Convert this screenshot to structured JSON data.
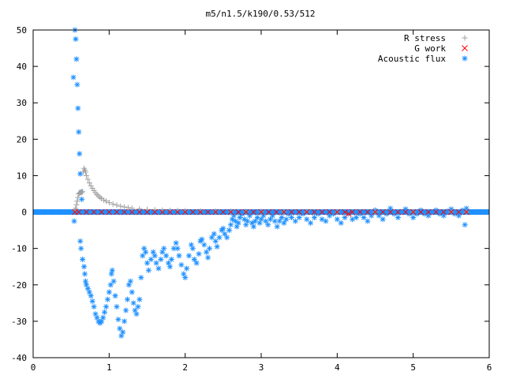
{
  "chart_data": {
    "type": "scatter",
    "title": "m5/n1.5/k190/0.53/512",
    "xlabel": "",
    "ylabel": "",
    "xlim": [
      0,
      6
    ],
    "ylim": [
      -40,
      50
    ],
    "xticks": [
      0,
      1,
      2,
      3,
      4,
      5,
      6
    ],
    "yticks": [
      -40,
      -30,
      -20,
      -10,
      0,
      10,
      20,
      30,
      40,
      50
    ],
    "grid": false,
    "legend_position": "top-right",
    "series": [
      {
        "name": "R stress",
        "marker": "plus",
        "color": "#a0a0a0",
        "points": [
          [
            0.55,
            0.5
          ],
          [
            0.56,
            1.0
          ],
          [
            0.57,
            2.0
          ],
          [
            0.58,
            3.0
          ],
          [
            0.59,
            4.0
          ],
          [
            0.6,
            5.0
          ],
          [
            0.61,
            5.2
          ],
          [
            0.62,
            5.3
          ],
          [
            0.63,
            5.4
          ],
          [
            0.64,
            5.5
          ],
          [
            0.65,
            5.6
          ],
          [
            0.66,
            11.0
          ],
          [
            0.67,
            12.0
          ],
          [
            0.68,
            11.5
          ],
          [
            0.69,
            11.0
          ],
          [
            0.7,
            10.0
          ],
          [
            0.72,
            9.0
          ],
          [
            0.74,
            8.0
          ],
          [
            0.76,
            7.2
          ],
          [
            0.78,
            6.5
          ],
          [
            0.8,
            5.9
          ],
          [
            0.82,
            5.3
          ],
          [
            0.84,
            4.8
          ],
          [
            0.86,
            4.4
          ],
          [
            0.88,
            4.0
          ],
          [
            0.9,
            3.7
          ],
          [
            0.93,
            3.3
          ],
          [
            0.96,
            3.0
          ],
          [
            1.0,
            2.6
          ],
          [
            1.05,
            2.2
          ],
          [
            1.1,
            1.9
          ],
          [
            1.15,
            1.6
          ],
          [
            1.2,
            1.4
          ],
          [
            1.25,
            1.2
          ],
          [
            1.3,
            1.05
          ],
          [
            1.4,
            0.85
          ],
          [
            1.5,
            0.7
          ],
          [
            1.6,
            0.6
          ],
          [
            1.7,
            0.5
          ],
          [
            1.8,
            0.45
          ],
          [
            1.9,
            0.4
          ],
          [
            2.0,
            0.35
          ],
          [
            2.2,
            0.3
          ],
          [
            2.4,
            0.25
          ],
          [
            2.6,
            0.2
          ],
          [
            2.8,
            0.18
          ],
          [
            3.0,
            0.15
          ],
          [
            3.3,
            0.12
          ],
          [
            3.6,
            0.1
          ],
          [
            4.0,
            0.08
          ],
          [
            4.5,
            0.06
          ],
          [
            5.0,
            0.05
          ],
          [
            5.5,
            0.04
          ],
          [
            5.7,
            0.03
          ]
        ]
      },
      {
        "name": "G work",
        "marker": "cross",
        "color": "#ff0000",
        "points": [
          [
            0.55,
            0.0
          ],
          [
            0.6,
            0.0
          ],
          [
            0.7,
            0.0
          ],
          [
            0.8,
            0.0
          ],
          [
            0.9,
            0.0
          ],
          [
            1.0,
            0.0
          ],
          [
            1.1,
            0.0
          ],
          [
            1.2,
            0.0
          ],
          [
            1.3,
            0.0
          ],
          [
            1.4,
            0.0
          ],
          [
            1.5,
            0.0
          ],
          [
            1.6,
            0.0
          ],
          [
            1.7,
            0.0
          ],
          [
            1.8,
            0.0
          ],
          [
            1.9,
            0.0
          ],
          [
            2.0,
            0.0
          ],
          [
            2.1,
            0.0
          ],
          [
            2.2,
            0.0
          ],
          [
            2.3,
            0.0
          ],
          [
            2.4,
            0.0
          ],
          [
            2.5,
            0.0
          ],
          [
            2.6,
            0.0
          ],
          [
            2.7,
            0.0
          ],
          [
            2.8,
            0.0
          ],
          [
            2.9,
            0.0
          ],
          [
            3.0,
            0.0
          ],
          [
            3.1,
            0.0
          ],
          [
            3.2,
            0.0
          ],
          [
            3.3,
            0.0
          ],
          [
            3.4,
            0.0
          ],
          [
            3.5,
            0.0
          ],
          [
            3.6,
            0.0
          ],
          [
            3.7,
            0.0
          ],
          [
            3.8,
            0.0
          ],
          [
            3.9,
            0.0
          ],
          [
            4.0,
            0.0
          ],
          [
            4.1,
            0.0
          ],
          [
            4.15,
            -0.5
          ],
          [
            4.2,
            0.0
          ],
          [
            4.3,
            0.0
          ],
          [
            4.4,
            0.0
          ],
          [
            4.5,
            0.0
          ],
          [
            4.6,
            0.0
          ],
          [
            4.7,
            0.0
          ],
          [
            4.8,
            0.0
          ],
          [
            4.9,
            0.0
          ],
          [
            5.0,
            0.0
          ],
          [
            5.1,
            0.0
          ],
          [
            5.2,
            0.0
          ],
          [
            5.3,
            0.0
          ],
          [
            5.4,
            0.0
          ],
          [
            5.5,
            0.0
          ],
          [
            5.6,
            0.0
          ],
          [
            5.7,
            0.0
          ]
        ]
      },
      {
        "name": "Acoustic flux",
        "marker": "star",
        "color": "#1e90ff",
        "points": [
          [
            0.53,
            37.0
          ],
          [
            0.55,
            50.0
          ],
          [
            0.56,
            47.5
          ],
          [
            0.57,
            42.0
          ],
          [
            0.58,
            35.0
          ],
          [
            0.59,
            28.5
          ],
          [
            0.6,
            22.0
          ],
          [
            0.61,
            16.0
          ],
          [
            0.62,
            10.5
          ],
          [
            0.63,
            5.5
          ],
          [
            0.64,
            3.5
          ],
          [
            0.54,
            -2.5
          ],
          [
            0.62,
            -8.0
          ],
          [
            0.63,
            -10.0
          ],
          [
            0.65,
            -13.0
          ],
          [
            0.67,
            -15.0
          ],
          [
            0.68,
            -17.0
          ],
          [
            0.69,
            -19.0
          ],
          [
            0.7,
            -20.0
          ],
          [
            0.72,
            -21.0
          ],
          [
            0.74,
            -22.0
          ],
          [
            0.76,
            -23.0
          ],
          [
            0.78,
            -24.5
          ],
          [
            0.8,
            -26.0
          ],
          [
            0.82,
            -28.0
          ],
          [
            0.84,
            -29.0
          ],
          [
            0.86,
            -30.0
          ],
          [
            0.88,
            -30.5
          ],
          [
            0.9,
            -30.0
          ],
          [
            0.92,
            -29.0
          ],
          [
            0.94,
            -27.5
          ],
          [
            0.96,
            -26.0
          ],
          [
            0.98,
            -24.0
          ],
          [
            1.0,
            -22.0
          ],
          [
            1.02,
            -20.0
          ],
          [
            1.03,
            -17.0
          ],
          [
            1.04,
            -16.0
          ],
          [
            1.06,
            -19.0
          ],
          [
            1.08,
            -23.0
          ],
          [
            1.1,
            -26.0
          ],
          [
            1.12,
            -29.5
          ],
          [
            1.14,
            -32.0
          ],
          [
            1.16,
            -34.0
          ],
          [
            1.18,
            -33.0
          ],
          [
            1.2,
            -30.0
          ],
          [
            1.22,
            -27.0
          ],
          [
            1.24,
            -24.0
          ],
          [
            1.26,
            -20.0
          ],
          [
            1.28,
            -19.0
          ],
          [
            1.3,
            -22.0
          ],
          [
            1.32,
            -25.0
          ],
          [
            1.34,
            -27.0
          ],
          [
            1.36,
            -28.0
          ],
          [
            1.38,
            -26.0
          ],
          [
            1.4,
            -24.0
          ],
          [
            1.42,
            -18.0
          ],
          [
            1.44,
            -12.0
          ],
          [
            1.46,
            -10.0
          ],
          [
            1.48,
            -11.0
          ],
          [
            1.5,
            -14.0
          ],
          [
            1.52,
            -16.0
          ],
          [
            1.55,
            -13.0
          ],
          [
            1.58,
            -11.0
          ],
          [
            1.6,
            -12.0
          ],
          [
            1.62,
            -14.0
          ],
          [
            1.65,
            -15.5
          ],
          [
            1.68,
            -13.0
          ],
          [
            1.7,
            -11.0
          ],
          [
            1.72,
            -10.0
          ],
          [
            1.75,
            -12.0
          ],
          [
            1.78,
            -14.0
          ],
          [
            1.8,
            -15.0
          ],
          [
            1.82,
            -13.0
          ],
          [
            1.85,
            -10.0
          ],
          [
            1.88,
            -8.5
          ],
          [
            1.9,
            -10.0
          ],
          [
            1.92,
            -12.0
          ],
          [
            1.95,
            -14.5
          ],
          [
            1.98,
            -17.0
          ],
          [
            2.0,
            -18.0
          ],
          [
            2.02,
            -15.5
          ],
          [
            2.05,
            -12.0
          ],
          [
            2.08,
            -9.0
          ],
          [
            2.1,
            -10.0
          ],
          [
            2.12,
            -13.0
          ],
          [
            2.15,
            -14.0
          ],
          [
            2.18,
            -11.5
          ],
          [
            2.2,
            -8.0
          ],
          [
            2.22,
            -7.5
          ],
          [
            2.25,
            -9.0
          ],
          [
            2.28,
            -11.0
          ],
          [
            2.3,
            -12.5
          ],
          [
            2.32,
            -10.0
          ],
          [
            2.35,
            -7.0
          ],
          [
            2.38,
            -6.0
          ],
          [
            2.4,
            -8.0
          ],
          [
            2.42,
            -9.5
          ],
          [
            2.45,
            -7.0
          ],
          [
            2.48,
            -5.0
          ],
          [
            2.5,
            -4.5
          ],
          [
            2.52,
            -6.0
          ],
          [
            2.55,
            -7.0
          ],
          [
            2.58,
            -5.0
          ],
          [
            2.6,
            -3.5
          ],
          [
            2.62,
            -2.0
          ],
          [
            2.64,
            -1.0
          ],
          [
            2.66,
            -2.5
          ],
          [
            2.68,
            -4.0
          ],
          [
            2.7,
            -3.0
          ],
          [
            2.72,
            -1.5
          ],
          [
            2.75,
            -0.5
          ],
          [
            2.78,
            -2.0
          ],
          [
            2.8,
            -3.5
          ],
          [
            2.82,
            -2.5
          ],
          [
            2.85,
            -1.0
          ],
          [
            2.88,
            -3.0
          ],
          [
            2.9,
            -4.0
          ],
          [
            2.92,
            -2.5
          ],
          [
            2.95,
            -1.5
          ],
          [
            2.98,
            -3.0
          ],
          [
            3.0,
            -2.0
          ],
          [
            3.03,
            -1.0
          ],
          [
            3.06,
            -2.5
          ],
          [
            3.09,
            -3.5
          ],
          [
            3.12,
            -2.0
          ],
          [
            3.15,
            -1.0
          ],
          [
            3.18,
            -2.5
          ],
          [
            3.21,
            -4.0
          ],
          [
            3.24,
            -2.5
          ],
          [
            3.27,
            -1.5
          ],
          [
            3.3,
            -3.0
          ],
          [
            3.33,
            -2.0
          ],
          [
            3.36,
            -0.5
          ],
          [
            3.4,
            -1.5
          ],
          [
            3.45,
            -2.5
          ],
          [
            3.5,
            -1.5
          ],
          [
            3.55,
            -0.5
          ],
          [
            3.6,
            -2.0
          ],
          [
            3.65,
            -3.0
          ],
          [
            3.7,
            -1.5
          ],
          [
            3.75,
            -0.5
          ],
          [
            3.8,
            -2.0
          ],
          [
            3.85,
            -2.5
          ],
          [
            3.9,
            -1.0
          ],
          [
            3.95,
            -0.5
          ],
          [
            4.0,
            -2.0
          ],
          [
            4.05,
            -3.0
          ],
          [
            4.1,
            -1.5
          ],
          [
            4.15,
            -0.5
          ],
          [
            4.2,
            -2.0
          ],
          [
            4.25,
            -1.5
          ],
          [
            4.3,
            -0.5
          ],
          [
            4.35,
            -1.5
          ],
          [
            4.4,
            -2.5
          ],
          [
            4.45,
            -1.0
          ],
          [
            4.5,
            0.5
          ],
          [
            4.55,
            -1.0
          ],
          [
            4.6,
            -2.0
          ],
          [
            4.65,
            -0.5
          ],
          [
            4.7,
            1.0
          ],
          [
            4.75,
            -0.5
          ],
          [
            4.8,
            -1.5
          ],
          [
            4.85,
            0.0
          ],
          [
            4.9,
            0.8
          ],
          [
            4.95,
            -0.5
          ],
          [
            5.0,
            -1.5
          ],
          [
            5.05,
            -0.5
          ],
          [
            5.1,
            0.5
          ],
          [
            5.15,
            -0.5
          ],
          [
            5.2,
            -1.0
          ],
          [
            5.25,
            0.0
          ],
          [
            5.3,
            0.5
          ],
          [
            5.35,
            -0.5
          ],
          [
            5.4,
            -1.0
          ],
          [
            5.45,
            0.2
          ],
          [
            5.5,
            0.8
          ],
          [
            5.55,
            -0.5
          ],
          [
            5.6,
            -1.0
          ],
          [
            5.65,
            0.5
          ],
          [
            5.68,
            -3.5
          ],
          [
            5.7,
            1.0
          ],
          [
            0.05,
            0.0
          ],
          [
            0.15,
            0.0
          ],
          [
            0.25,
            0.0
          ],
          [
            0.35,
            0.0
          ],
          [
            0.45,
            0.0
          ]
        ]
      }
    ]
  }
}
